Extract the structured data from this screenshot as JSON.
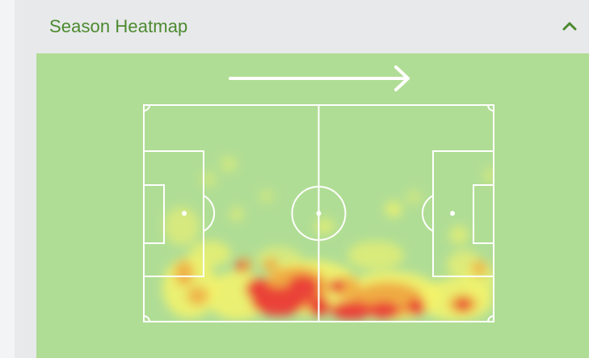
{
  "panel": {
    "title": "Season Heatmap"
  },
  "icons": {
    "collapse": "chevron-up-icon",
    "direction": "arrow-right-icon"
  },
  "colors": {
    "title": "#4b8a2f",
    "pitch_background": "#b0dd95",
    "pitch_lines": "#ffffff",
    "heat_low": "#f4f36b",
    "heat_mid": "#f0a43e",
    "heat_high": "#ea4337"
  }
}
